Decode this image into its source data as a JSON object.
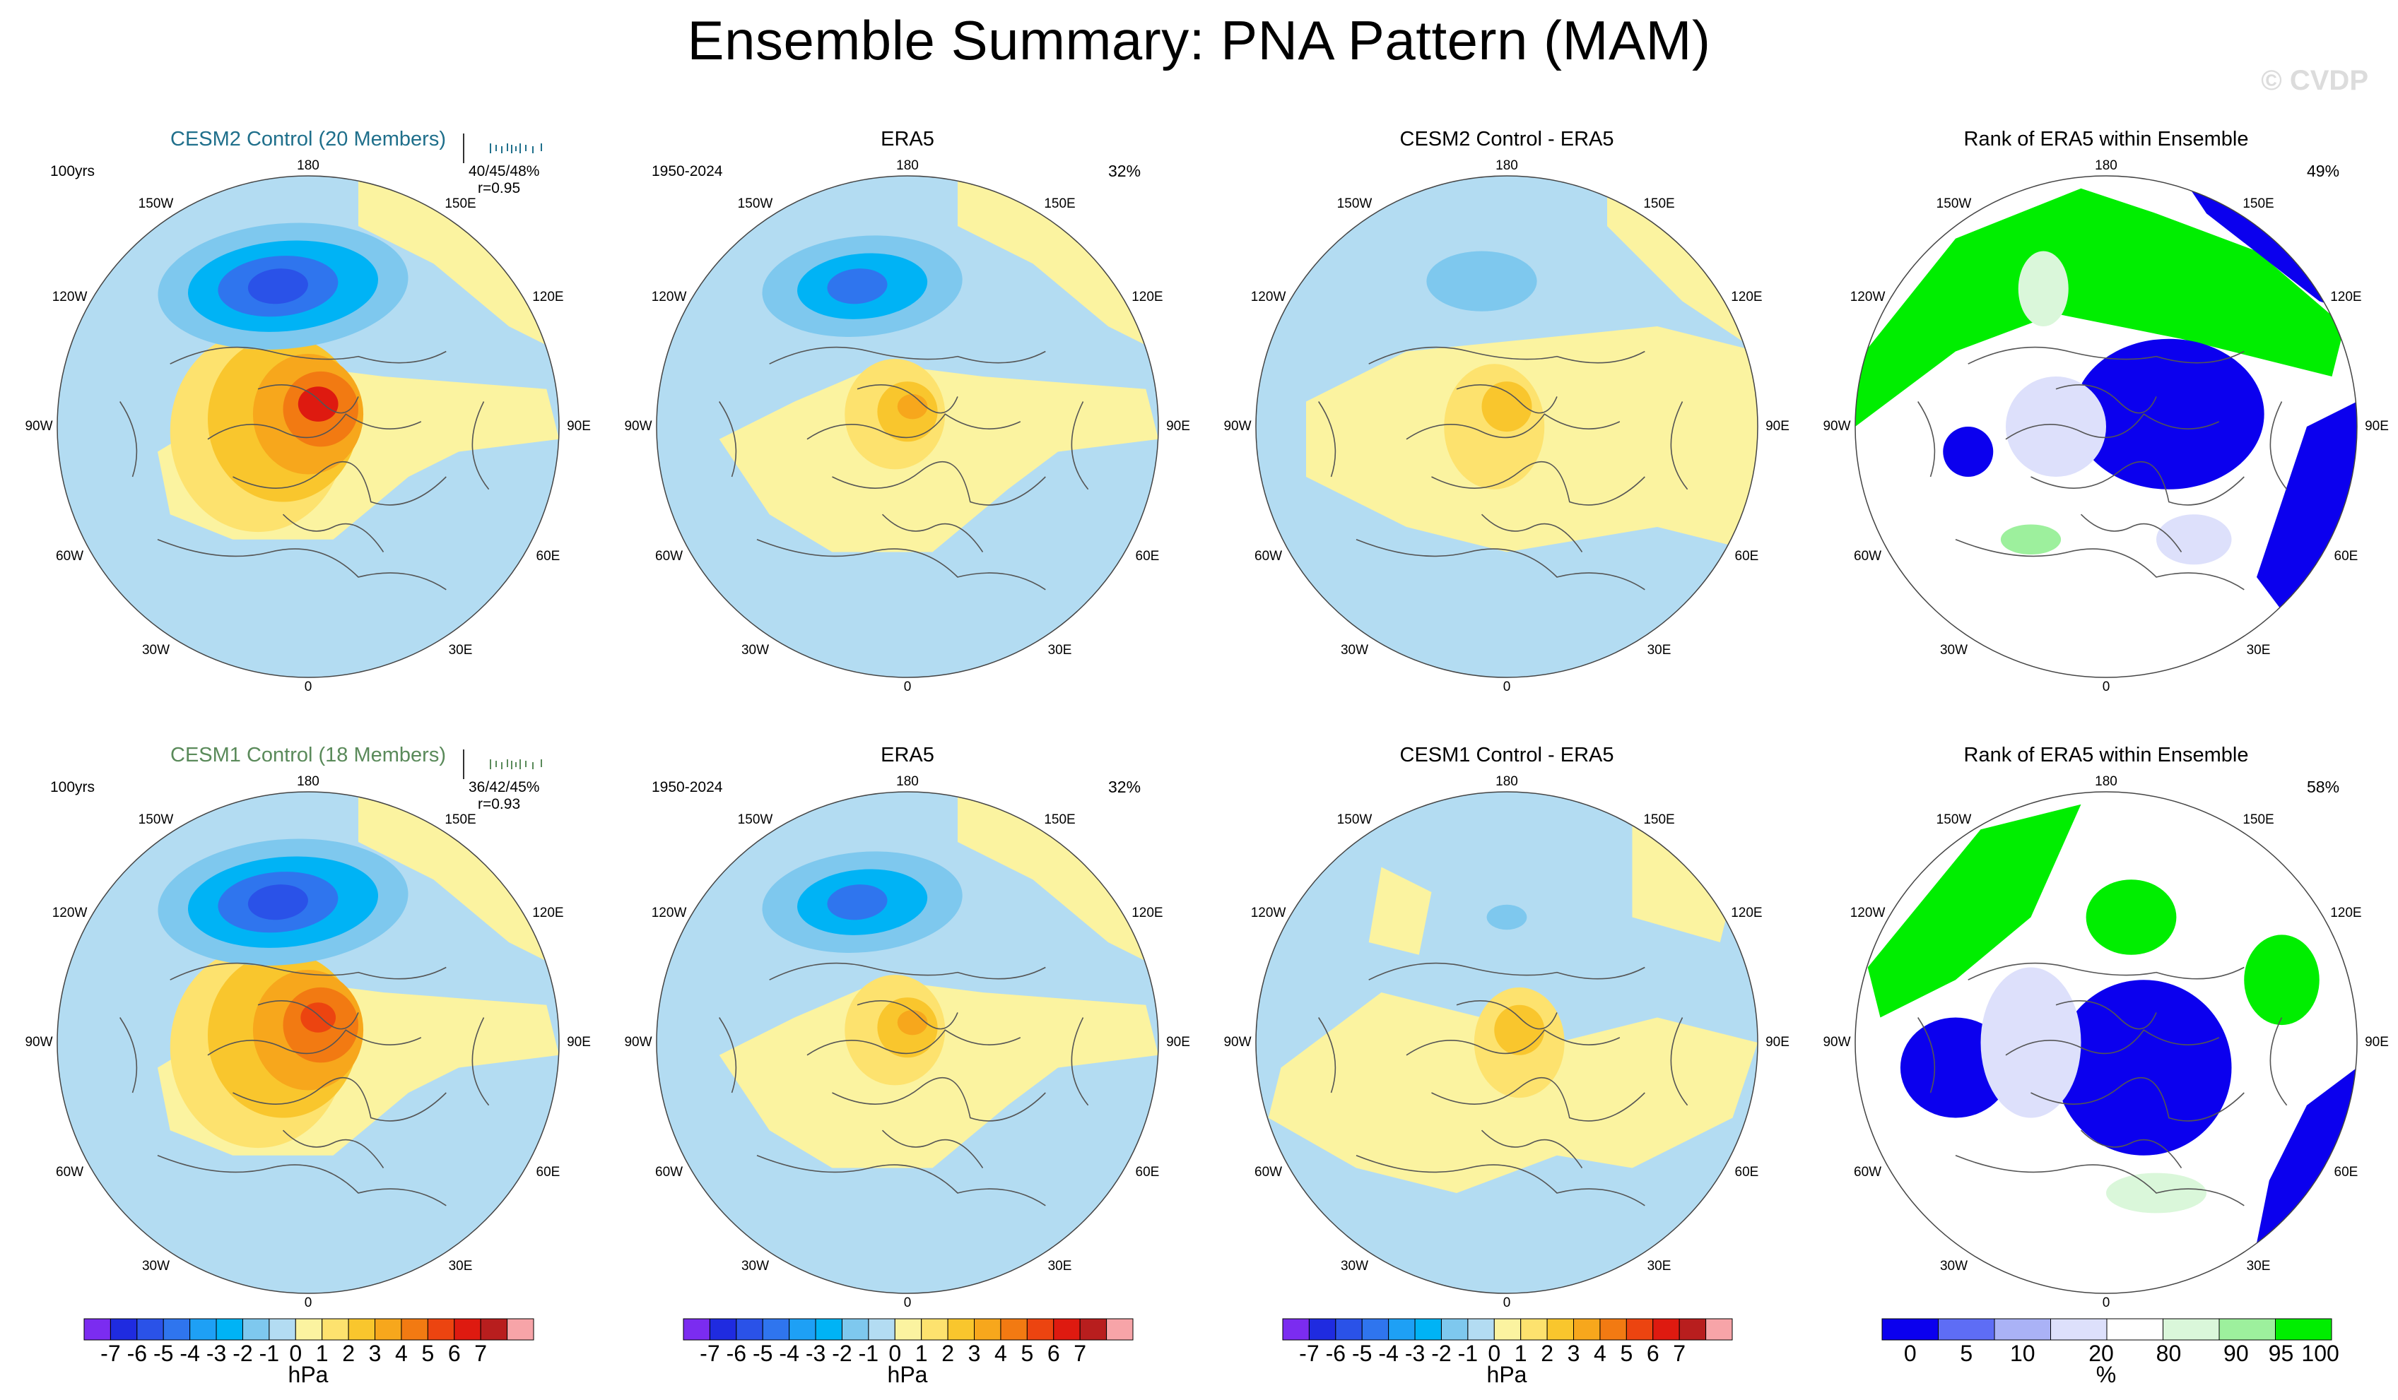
{
  "title": "Ensemble Summary: PNA Pattern (MAM)",
  "watermark": "© CVDP",
  "colors": {
    "neg7": "#7b2cf0",
    "neg6": "#1f2be0",
    "neg5": "#2a52e8",
    "neg4": "#2f75ee",
    "neg3": "#1ea0f5",
    "neg2": "#00b3f5",
    "neg1": "#7ec8ee",
    "neg0": "#b3dcf2",
    "pos0": "#fbf3a0",
    "pos1": "#fde26e",
    "pos2": "#f9c62d",
    "pos3": "#f7a71c",
    "pos4": "#f27a12",
    "pos5": "#ec4410",
    "pos6": "#de1a10",
    "pos7": "#b81e1e",
    "pos8": "#f7a4a8",
    "rank0": "#0b00ee",
    "rank5": "#5e6df5",
    "rank10": "#aab2f6",
    "rank20": "#dde0fb",
    "rank80": "#ffffff",
    "rank90": "#daf7da",
    "rank95": "#9df09d",
    "rank100": "#00ee00"
  },
  "geo_labels": {
    "lon_top": "180",
    "lon_bottom": "0",
    "lon_left": "90W",
    "lon_right": "90E",
    "ul1": "150W",
    "ur1": "150E",
    "ul2": "120W",
    "ur2": "120E",
    "ll1": "60W",
    "lr1": "60E",
    "ll2": "30W",
    "lr2": "30E"
  },
  "rows": [
    {
      "model_title": "CESM2 Control (20 Members)",
      "model_years": "100yrs",
      "model_stats": "40/45/48%",
      "model_r": "r=0.95",
      "obs_title": "ERA5",
      "obs_years": "1950-2024",
      "obs_pct": "32%",
      "diff_title": "CESM2 Control - ERA5",
      "rank_title": "Rank of ERA5 within Ensemble",
      "rank_pct": "49%"
    },
    {
      "model_title": "CESM1 Control (18 Members)",
      "model_years": "100yrs",
      "model_stats": "36/42/45%",
      "model_r": "r=0.93",
      "obs_title": "ERA5",
      "obs_years": "1950-2024",
      "obs_pct": "32%",
      "diff_title": "CESM1 Control - ERA5",
      "rank_title": "Rank of ERA5 within Ensemble",
      "rank_pct": "58%"
    }
  ],
  "chart_data": [
    {
      "type": "heatmap",
      "title": "PNA pattern colorbar",
      "units": "hPa",
      "tick_labels": [
        "-7",
        "-6",
        "-5",
        "-4",
        "-3",
        "-2",
        "-1",
        "0",
        "1",
        "2",
        "3",
        "4",
        "5",
        "6",
        "7"
      ],
      "levels": [
        -7,
        -6,
        -5,
        -4,
        -3,
        -2,
        -1,
        0,
        1,
        2,
        3,
        4,
        5,
        6,
        7
      ]
    },
    {
      "type": "heatmap",
      "title": "Rank of ERA5 within Ensemble colorbar",
      "units": "%",
      "tick_labels": [
        "0",
        "5",
        "10",
        "20",
        "80",
        "90",
        "95",
        "100"
      ],
      "levels": [
        0,
        5,
        10,
        20,
        80,
        90,
        95,
        100
      ]
    }
  ]
}
